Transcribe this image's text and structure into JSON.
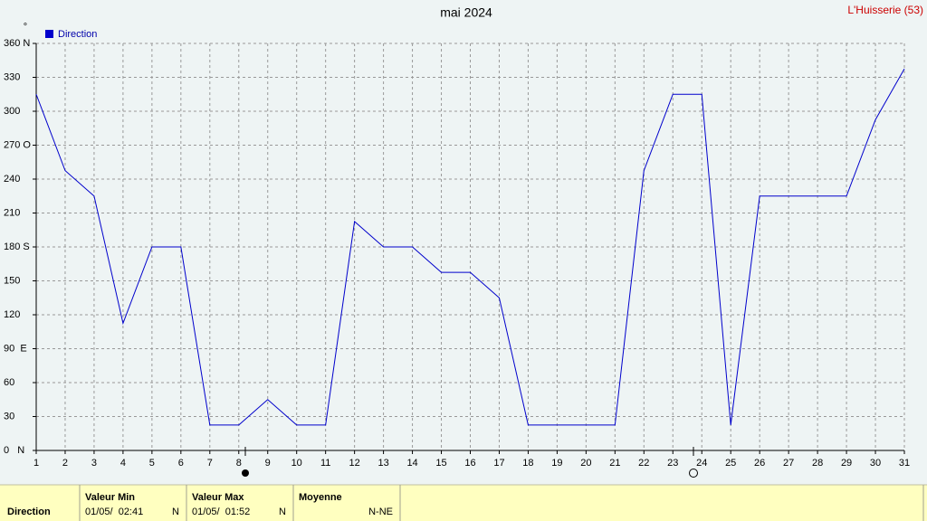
{
  "chart_data": {
    "type": "line",
    "title": "mai 2024",
    "station": "L'Huisserie (53)",
    "y_unit": "°",
    "x": [
      1,
      2,
      3,
      4,
      5,
      6,
      7,
      8,
      9,
      10,
      11,
      12,
      13,
      14,
      15,
      16,
      17,
      18,
      19,
      20,
      21,
      22,
      23,
      24,
      25,
      26,
      27,
      28,
      29,
      30,
      31
    ],
    "xlim": [
      1,
      31
    ],
    "series": [
      {
        "name": "Direction",
        "color": "#0000cc",
        "values": [
          315,
          247.5,
          225,
          112.5,
          180,
          180,
          22.5,
          22.5,
          45,
          22.5,
          22.5,
          202.5,
          180,
          180,
          157.5,
          157.5,
          135,
          22.5,
          22.5,
          22.5,
          22.5,
          247.5,
          315,
          315,
          22.5,
          225,
          225,
          225,
          225,
          292.5,
          337.5
        ]
      }
    ],
    "ylim": [
      0,
      360
    ],
    "yticks": [
      {
        "value": 0,
        "label": "0   N"
      },
      30,
      60,
      {
        "value": 90,
        "label": "90  E"
      },
      120,
      150,
      {
        "value": 180,
        "label": "180 S"
      },
      210,
      240,
      {
        "value": 270,
        "label": "270 O"
      },
      300,
      330,
      {
        "value": 360,
        "label": "360 N"
      }
    ],
    "grid": true
  },
  "summary": {
    "row_label": "Direction",
    "min": {
      "title": "Valeur Min",
      "date": "01/05/  02:41",
      "value": "N"
    },
    "max": {
      "title": "Valeur Max",
      "date": "01/05/  01:52",
      "value": "N"
    },
    "mean": {
      "title": "Moyenne",
      "value": "N-NE"
    }
  }
}
